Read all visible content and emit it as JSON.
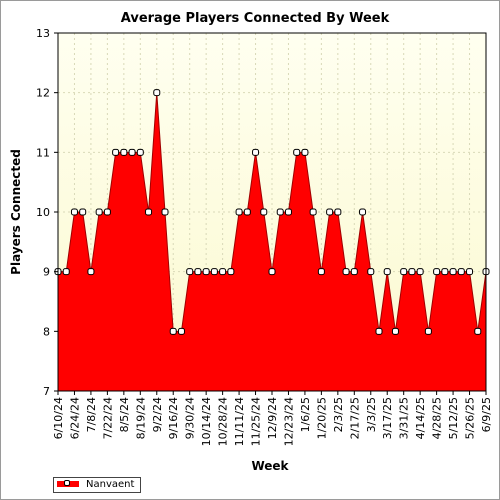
{
  "colors": {
    "plot_bg_top": "#fffff0",
    "plot_bg_bottom": "#fbf9cf",
    "fill": "#ff0000",
    "line": "#a00000",
    "marker_fill": "#ffffff",
    "grid": "#d9d9b8"
  },
  "chart_data": {
    "type": "area",
    "title": "Average Players Connected By Week",
    "xlabel": "Week",
    "ylabel": "Players Connected",
    "ylim": [
      7,
      13
    ],
    "yticks": [
      7,
      8,
      9,
      10,
      11,
      12,
      13
    ],
    "grid": true,
    "legend_position": "bottom-left",
    "x_tick_labels": [
      "6/10/24",
      "6/24/24",
      "7/8/24",
      "7/22/24",
      "8/5/24",
      "8/19/24",
      "9/2/24",
      "9/16/24",
      "9/30/24",
      "10/14/24",
      "10/28/24",
      "11/11/24",
      "11/25/24",
      "12/9/24",
      "12/23/24",
      "1/6/25",
      "1/20/25",
      "2/3/25",
      "2/17/25",
      "3/3/25",
      "3/17/25",
      "3/31/25",
      "4/14/25",
      "4/28/25",
      "5/12/25",
      "5/26/25",
      "6/9/25"
    ],
    "series": [
      {
        "name": "Nanvaent",
        "x": [
          "6/10/24",
          "6/17/24",
          "6/24/24",
          "7/1/24",
          "7/8/24",
          "7/15/24",
          "7/22/24",
          "7/29/24",
          "8/5/24",
          "8/12/24",
          "8/19/24",
          "8/26/24",
          "9/2/24",
          "9/9/24",
          "9/16/24",
          "9/23/24",
          "9/30/24",
          "10/7/24",
          "10/14/24",
          "10/21/24",
          "10/28/24",
          "11/4/24",
          "11/11/24",
          "11/18/24",
          "11/25/24",
          "12/2/24",
          "12/9/24",
          "12/16/24",
          "12/23/24",
          "12/30/24",
          "1/6/25",
          "1/13/25",
          "1/20/25",
          "1/27/25",
          "2/3/25",
          "2/10/25",
          "2/17/25",
          "2/24/25",
          "3/3/25",
          "3/10/25",
          "3/17/25",
          "3/24/25",
          "3/31/25",
          "4/7/25",
          "4/14/25",
          "4/21/25",
          "4/28/25",
          "5/5/25",
          "5/12/25",
          "5/19/25",
          "5/26/25",
          "6/2/25",
          "6/9/25"
        ],
        "values": [
          9,
          9,
          10,
          10,
          9,
          10,
          10,
          11,
          11,
          11,
          11,
          10,
          12,
          10,
          8,
          8,
          9,
          9,
          9,
          9,
          9,
          9,
          10,
          10,
          11,
          10,
          9,
          10,
          10,
          11,
          11,
          10,
          9,
          10,
          10,
          9,
          9,
          10,
          9,
          8,
          9,
          8,
          9,
          9,
          9,
          8,
          9,
          9,
          9,
          9,
          9,
          8,
          9
        ]
      }
    ]
  }
}
